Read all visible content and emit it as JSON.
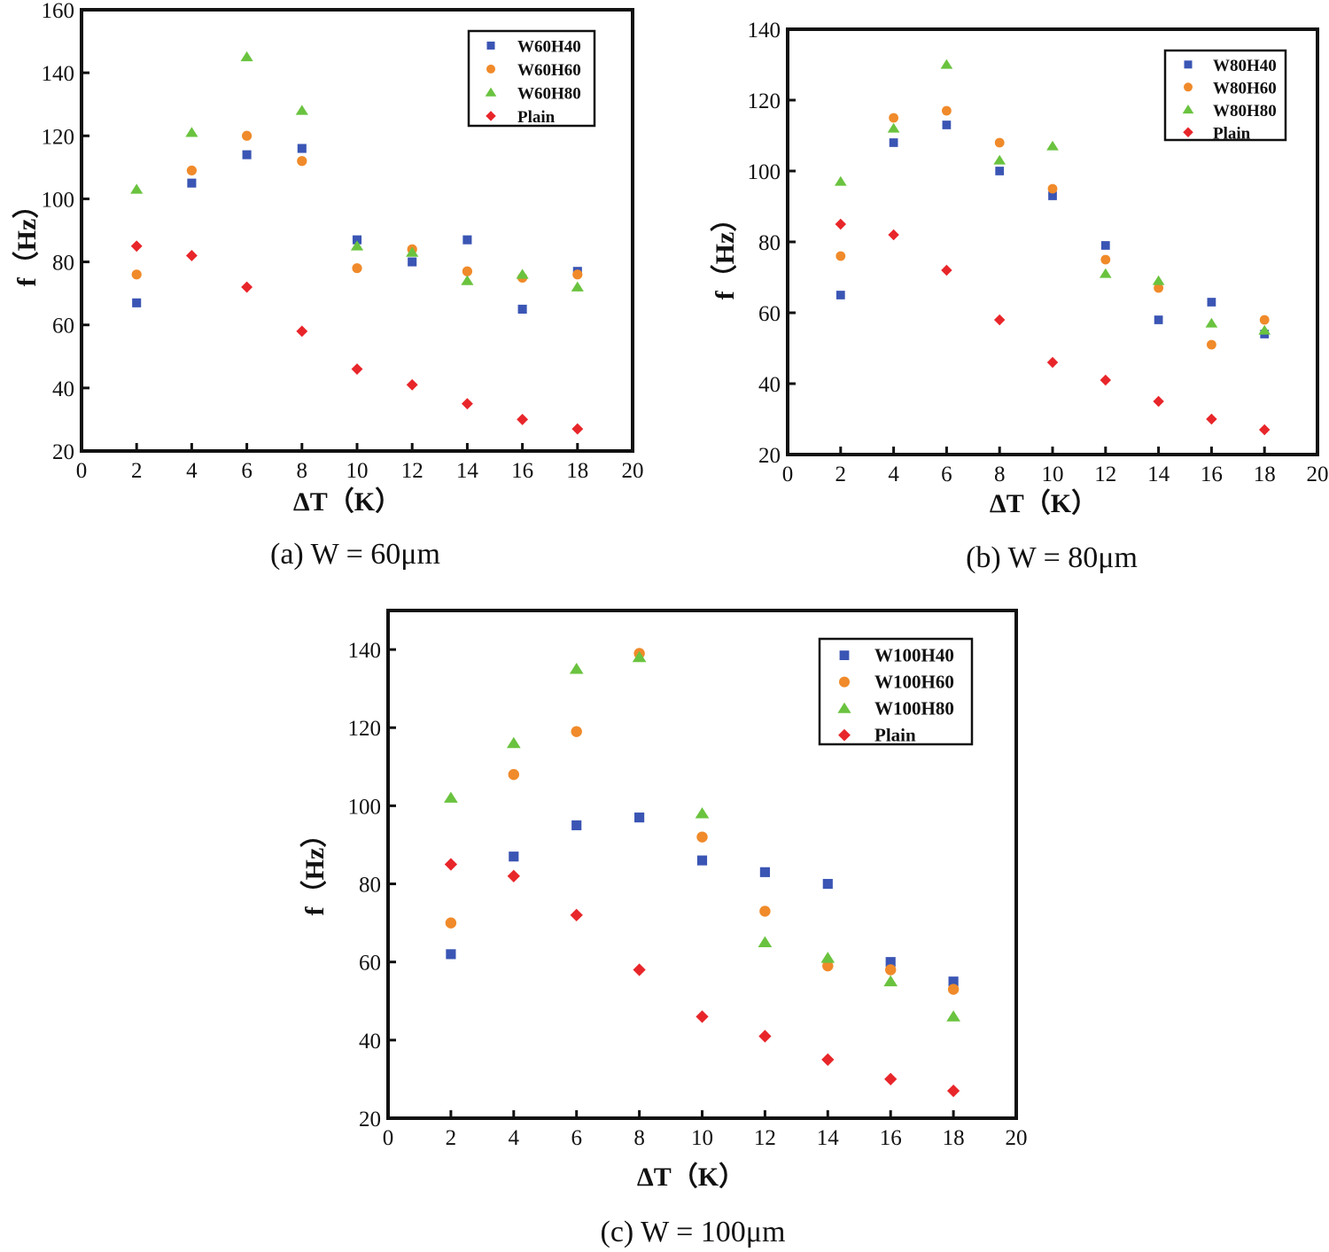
{
  "colors": {
    "square": "#3a55b4",
    "circle": "#f08a2a",
    "triangle": "#6ac33f",
    "diamond": "#e8262a"
  },
  "chart_data": [
    {
      "type": "scatter",
      "caption": "(a) W = 60μm",
      "xlabel": "ΔT（K）",
      "ylabel": "f（Hz）",
      "xlim": [
        0,
        20
      ],
      "ylim": [
        20,
        160
      ],
      "xticks": [
        "0",
        "2",
        "4",
        "6",
        "8",
        "10",
        "12",
        "14",
        "16",
        "18",
        "20"
      ],
      "yticks": [
        "20",
        "40",
        "60",
        "80",
        "100",
        "120",
        "140",
        "160"
      ],
      "x": [
        2,
        4,
        6,
        8,
        10,
        12,
        14,
        16,
        18
      ],
      "series": [
        {
          "name": "W60H40",
          "marker": "square",
          "values": [
            67,
            105,
            114,
            116,
            87,
            80,
            87,
            65,
            77
          ]
        },
        {
          "name": "W60H60",
          "marker": "circle",
          "values": [
            76,
            109,
            120,
            112,
            78,
            84,
            77,
            75,
            76
          ]
        },
        {
          "name": "W60H80",
          "marker": "triangle",
          "values": [
            103,
            121,
            145,
            128,
            85,
            83,
            74,
            76,
            72
          ]
        },
        {
          "name": "Plain",
          "marker": "diamond",
          "values": [
            85,
            82,
            72,
            58,
            46,
            41,
            35,
            30,
            27
          ]
        }
      ]
    },
    {
      "type": "scatter",
      "caption": "(b) W = 80μm",
      "xlabel": "ΔT（K）",
      "ylabel": "f（Hz）",
      "xlim": [
        0,
        20
      ],
      "ylim": [
        20,
        140
      ],
      "xticks": [
        "0",
        "2",
        "4",
        "6",
        "8",
        "10",
        "12",
        "14",
        "16",
        "18",
        "20"
      ],
      "yticks": [
        "20",
        "40",
        "60",
        "80",
        "100",
        "120",
        "140"
      ],
      "x": [
        2,
        4,
        6,
        8,
        10,
        12,
        14,
        16,
        18
      ],
      "series": [
        {
          "name": "W80H40",
          "marker": "square",
          "values": [
            65,
            108,
            113,
            100,
            93,
            79,
            58,
            63,
            54
          ]
        },
        {
          "name": "W80H60",
          "marker": "circle",
          "values": [
            76,
            115,
            117,
            108,
            95,
            75,
            67,
            51,
            58
          ]
        },
        {
          "name": "W80H80",
          "marker": "triangle",
          "values": [
            97,
            112,
            130,
            103,
            107,
            71,
            69,
            57,
            55
          ]
        },
        {
          "name": "Plain",
          "marker": "diamond",
          "values": [
            85,
            82,
            72,
            58,
            46,
            41,
            35,
            30,
            27
          ]
        }
      ]
    },
    {
      "type": "scatter",
      "caption": "(c) W = 100μm",
      "xlabel": "ΔT（K）",
      "ylabel": "f（Hz）",
      "xlim": [
        0,
        20
      ],
      "ylim": [
        20,
        150
      ],
      "xticks": [
        "0",
        "2",
        "4",
        "6",
        "8",
        "10",
        "12",
        "14",
        "16",
        "18",
        "20"
      ],
      "yticks": [
        "20",
        "40",
        "60",
        "80",
        "100",
        "120",
        "140"
      ],
      "x": [
        2,
        4,
        6,
        8,
        10,
        12,
        14,
        16,
        18
      ],
      "series": [
        {
          "name": "W100H40",
          "marker": "square",
          "values": [
            62,
            87,
            95,
            97,
            86,
            83,
            80,
            60,
            55
          ]
        },
        {
          "name": "W100H60",
          "marker": "circle",
          "values": [
            70,
            108,
            119,
            139,
            92,
            73,
            59,
            58,
            53
          ]
        },
        {
          "name": "W100H80",
          "marker": "triangle",
          "values": [
            102,
            116,
            135,
            138,
            98,
            65,
            61,
            55,
            46
          ]
        },
        {
          "name": "Plain",
          "marker": "diamond",
          "values": [
            85,
            82,
            72,
            58,
            46,
            41,
            35,
            30,
            27
          ]
        }
      ]
    }
  ]
}
